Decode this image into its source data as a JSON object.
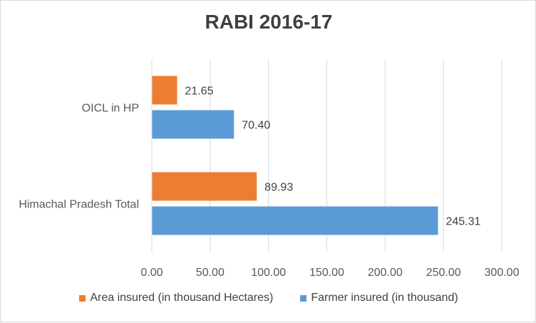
{
  "chart_data": {
    "type": "bar",
    "orientation": "horizontal",
    "title": "RABI 2016-17",
    "categories": [
      "OICL in HP",
      "Himachal Pradesh Total"
    ],
    "series": [
      {
        "name": "Area insured (in thousand Hectares)",
        "color": "#ed7d31",
        "values": [
          21.65,
          89.93
        ],
        "value_labels": [
          "21.65",
          "89.93"
        ]
      },
      {
        "name": "Farmer insured (in thousand)",
        "color": "#5b9bd5",
        "values": [
          70.4,
          245.31
        ],
        "value_labels": [
          "70.40",
          "245.31"
        ]
      }
    ],
    "xlim": [
      0,
      300
    ],
    "x_ticks": [
      0,
      50,
      100,
      150,
      200,
      250,
      300
    ],
    "x_tick_labels": [
      "0.00",
      "50.00",
      "100.00",
      "150.00",
      "200.00",
      "250.00",
      "300.00"
    ],
    "grid": true,
    "legend_position": "bottom"
  }
}
